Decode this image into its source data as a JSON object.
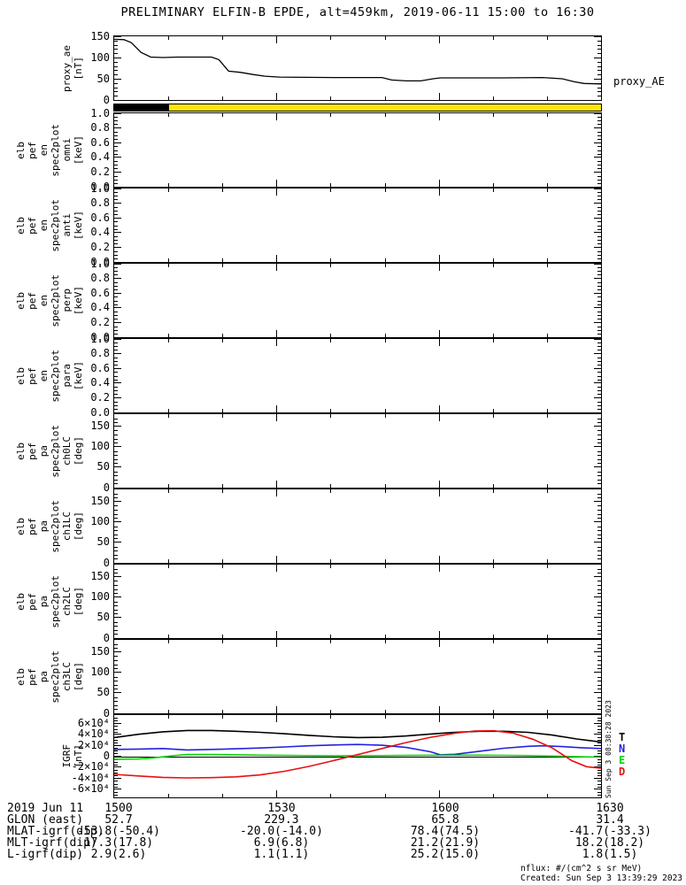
{
  "title": "PRELIMINARY ELFIN-B EPDE, alt=459km, 2019-06-11 15:00 to 16:30",
  "right_labels": {
    "proxy_ae": "proxy_AE",
    "legend": [
      {
        "label": "T",
        "color": "#000000"
      },
      {
        "label": "N",
        "color": "#2222E0"
      },
      {
        "label": "E",
        "color": "#00D800"
      },
      {
        "label": "D",
        "color": "#E81010"
      }
    ],
    "side_timestamp": "Sun Sep  3 08:38:28 2023"
  },
  "footer": {
    "nflux_label": "nflux: #/(cm^2 s sr MeV)",
    "created_label": "Created: Sun Sep  3 13:39:29 2023"
  },
  "table": {
    "date_label": "2019 Jun 11",
    "time_labels": [
      "1500",
      "1530",
      "1600",
      "1630"
    ],
    "rows": [
      {
        "label": "GLON (east)",
        "values": [
          "52.7",
          "229.3",
          "65.8",
          "31.4"
        ]
      },
      {
        "label": "MLAT-igrf(dip)",
        "values": [
          "-53.8(-50.4)",
          "-20.0(-14.0)",
          "78.4(74.5)",
          "-41.7(-33.3)"
        ]
      },
      {
        "label": "MLT-igrf(dip)",
        "values": [
          "17.3(17.8)",
          "6.9(6.8)",
          "21.2(21.9)",
          "18.2(18.2)"
        ]
      },
      {
        "label": "L-igrf(dip)",
        "values": [
          "2.9(2.6)",
          "1.1(1.1)",
          "25.2(15.0)",
          "1.8(1.5)"
        ]
      }
    ]
  },
  "xaxis": {
    "tick_labels": [
      "1500",
      "1530",
      "1600",
      "1630"
    ],
    "range": [
      "15:00",
      "16:30"
    ]
  },
  "chart_data": [
    {
      "id": "proxy_ae",
      "type": "line",
      "title_lines": [
        "proxy_ae",
        "[nT]"
      ],
      "ylim": [
        0,
        150
      ],
      "yminor": 10,
      "yticks": [
        {
          "v": 0,
          "l": "0"
        },
        {
          "v": 50,
          "l": "50"
        },
        {
          "v": 100,
          "l": "100"
        },
        {
          "v": 150,
          "l": "150"
        }
      ],
      "series": [
        {
          "name": "proxy_AE",
          "color": "#000000",
          "width": 1.3,
          "points": [
            [
              0,
              143
            ],
            [
              0.02,
              142
            ],
            [
              0.035,
              135
            ],
            [
              0.055,
              112
            ],
            [
              0.075,
              101
            ],
            [
              0.1,
              100
            ],
            [
              0.13,
              101
            ],
            [
              0.2,
              101
            ],
            [
              0.215,
              95
            ],
            [
              0.235,
              68
            ],
            [
              0.26,
              65
            ],
            [
              0.285,
              60
            ],
            [
              0.31,
              56
            ],
            [
              0.34,
              54
            ],
            [
              0.45,
              53
            ],
            [
              0.55,
              53
            ],
            [
              0.57,
              47
            ],
            [
              0.6,
              45
            ],
            [
              0.63,
              45
            ],
            [
              0.655,
              50
            ],
            [
              0.67,
              52
            ],
            [
              0.8,
              52
            ],
            [
              0.88,
              53
            ],
            [
              0.92,
              50
            ],
            [
              0.945,
              43
            ],
            [
              0.965,
              39
            ],
            [
              1,
              38
            ]
          ]
        }
      ]
    },
    {
      "id": "flag_bar",
      "type": "colorbar",
      "segments": [
        {
          "from": 0,
          "to": 0.1123,
          "color": "#000000"
        },
        {
          "from": 0.1123,
          "to": 1,
          "color": "#FDE900"
        }
      ]
    },
    {
      "id": "en_omni",
      "type": "spectrogram-empty",
      "title_lines": [
        "elb",
        "pef",
        "en",
        "spec2plot",
        "omni",
        "[keV]"
      ],
      "ylim": [
        0,
        1
      ],
      "yminor": 0.05,
      "yticks": [
        {
          "v": 0,
          "l": "0.0"
        },
        {
          "v": 0.2,
          "l": "0.2"
        },
        {
          "v": 0.4,
          "l": "0.4"
        },
        {
          "v": 0.6,
          "l": "0.6"
        },
        {
          "v": 0.8,
          "l": "0.8"
        },
        {
          "v": 1,
          "l": "1.0"
        }
      ]
    },
    {
      "id": "en_anti",
      "type": "spectrogram-empty",
      "title_lines": [
        "elb",
        "pef",
        "en",
        "spec2plot",
        "anti",
        "[keV]"
      ],
      "ylim": [
        0,
        1
      ],
      "yminor": 0.05,
      "yticks": [
        {
          "v": 0,
          "l": "0.0"
        },
        {
          "v": 0.2,
          "l": "0.2"
        },
        {
          "v": 0.4,
          "l": "0.4"
        },
        {
          "v": 0.6,
          "l": "0.6"
        },
        {
          "v": 0.8,
          "l": "0.8"
        },
        {
          "v": 1,
          "l": "1.0"
        }
      ]
    },
    {
      "id": "en_perp",
      "type": "spectrogram-empty",
      "title_lines": [
        "elb",
        "pef",
        "en",
        "spec2plot",
        "perp",
        "[keV]"
      ],
      "ylim": [
        0,
        1
      ],
      "yminor": 0.05,
      "yticks": [
        {
          "v": 0,
          "l": "0.0"
        },
        {
          "v": 0.2,
          "l": "0.2"
        },
        {
          "v": 0.4,
          "l": "0.4"
        },
        {
          "v": 0.6,
          "l": "0.6"
        },
        {
          "v": 0.8,
          "l": "0.8"
        },
        {
          "v": 1,
          "l": "1.0"
        }
      ]
    },
    {
      "id": "en_para",
      "type": "spectrogram-empty",
      "title_lines": [
        "elb",
        "pef",
        "en",
        "spec2plot",
        "para",
        "[keV]"
      ],
      "ylim": [
        0,
        1
      ],
      "yminor": 0.05,
      "yticks": [
        {
          "v": 0,
          "l": "0.0"
        },
        {
          "v": 0.2,
          "l": "0.2"
        },
        {
          "v": 0.4,
          "l": "0.4"
        },
        {
          "v": 0.6,
          "l": "0.6"
        },
        {
          "v": 0.8,
          "l": "0.8"
        },
        {
          "v": 1,
          "l": "1.0"
        }
      ]
    },
    {
      "id": "pa_ch0lc",
      "type": "spectrogram-empty",
      "title_lines": [
        "elb",
        "pef",
        "pa",
        "spec2plot",
        "ch0LC",
        "[deg]"
      ],
      "ylim": [
        0,
        180
      ],
      "yminor": 10,
      "yticks": [
        {
          "v": 0,
          "l": "0"
        },
        {
          "v": 50,
          "l": "50"
        },
        {
          "v": 100,
          "l": "100"
        },
        {
          "v": 150,
          "l": "150"
        }
      ]
    },
    {
      "id": "pa_ch1lc",
      "type": "spectrogram-empty",
      "title_lines": [
        "elb",
        "pef",
        "pa",
        "spec2plot",
        "ch1LC",
        "[deg]"
      ],
      "ylim": [
        0,
        180
      ],
      "yminor": 10,
      "yticks": [
        {
          "v": 0,
          "l": "0"
        },
        {
          "v": 50,
          "l": "50"
        },
        {
          "v": 100,
          "l": "100"
        },
        {
          "v": 150,
          "l": "150"
        }
      ]
    },
    {
      "id": "pa_ch2lc",
      "type": "spectrogram-empty",
      "title_lines": [
        "elb",
        "pef",
        "pa",
        "spec2plot",
        "ch2LC",
        "[deg]"
      ],
      "ylim": [
        0,
        180
      ],
      "yminor": 10,
      "yticks": [
        {
          "v": 0,
          "l": "0"
        },
        {
          "v": 50,
          "l": "50"
        },
        {
          "v": 100,
          "l": "100"
        },
        {
          "v": 150,
          "l": "150"
        }
      ]
    },
    {
      "id": "pa_ch3lc",
      "type": "spectrogram-empty",
      "title_lines": [
        "elb",
        "pef",
        "pa",
        "spec2plot",
        "ch3LC",
        "[deg]"
      ],
      "ylim": [
        0,
        180
      ],
      "yminor": 10,
      "yticks": [
        {
          "v": 0,
          "l": "0"
        },
        {
          "v": 50,
          "l": "50"
        },
        {
          "v": 100,
          "l": "100"
        },
        {
          "v": 150,
          "l": "150"
        }
      ]
    },
    {
      "id": "igrf",
      "type": "line",
      "zero_line": true,
      "title_lines": [
        "IGRF",
        "[nT]"
      ],
      "ylim": [
        -75000,
        75000
      ],
      "yminor": 5000,
      "yticks": [
        {
          "v": -60000,
          "l": "-6×10⁴"
        },
        {
          "v": -40000,
          "l": "-4×10⁴"
        },
        {
          "v": -20000,
          "l": "-2×10⁴"
        },
        {
          "v": 0,
          "l": "0"
        },
        {
          "v": 20000,
          "l": "2×10⁴"
        },
        {
          "v": 40000,
          "l": "4×10⁴"
        },
        {
          "v": 60000,
          "l": "6×10⁴"
        }
      ],
      "series": [
        {
          "name": "T",
          "color": "#000000",
          "width": 1.6,
          "points": [
            [
              0,
              34000
            ],
            [
              0.05,
              40000
            ],
            [
              0.1,
              44500
            ],
            [
              0.15,
              47000
            ],
            [
              0.2,
              47000
            ],
            [
              0.25,
              45500
            ],
            [
              0.3,
              43500
            ],
            [
              0.35,
              41000
            ],
            [
              0.4,
              38000
            ],
            [
              0.45,
              35500
            ],
            [
              0.5,
              34000
            ],
            [
              0.55,
              34500
            ],
            [
              0.6,
              37000
            ],
            [
              0.65,
              40500
            ],
            [
              0.7,
              43500
            ],
            [
              0.75,
              45500
            ],
            [
              0.8,
              45500
            ],
            [
              0.85,
              43500
            ],
            [
              0.9,
              38500
            ],
            [
              0.95,
              31500
            ],
            [
              1,
              26000
            ]
          ]
        },
        {
          "name": "N",
          "color": "#2222E0",
          "width": 1.6,
          "points": [
            [
              0,
              12500
            ],
            [
              0.05,
              13000
            ],
            [
              0.1,
              14000
            ],
            [
              0.12,
              13000
            ],
            [
              0.15,
              11500
            ],
            [
              0.2,
              12500
            ],
            [
              0.25,
              13500
            ],
            [
              0.3,
              15000
            ],
            [
              0.35,
              17000
            ],
            [
              0.4,
              19000
            ],
            [
              0.45,
              20500
            ],
            [
              0.5,
              21500
            ],
            [
              0.55,
              20000
            ],
            [
              0.6,
              16000
            ],
            [
              0.65,
              8000
            ],
            [
              0.67,
              2500
            ],
            [
              0.7,
              3500
            ],
            [
              0.75,
              9000
            ],
            [
              0.8,
              14500
            ],
            [
              0.85,
              18000
            ],
            [
              0.88,
              19000
            ],
            [
              0.92,
              17500
            ],
            [
              0.96,
              15500
            ],
            [
              1,
              14000
            ]
          ]
        },
        {
          "name": "E",
          "color": "#00D800",
          "width": 1.6,
          "points": [
            [
              0,
              -5500
            ],
            [
              0.05,
              -5000
            ],
            [
              0.08,
              -3000
            ],
            [
              0.12,
              1000
            ],
            [
              0.15,
              3000
            ],
            [
              0.2,
              3200
            ],
            [
              0.25,
              2600
            ],
            [
              0.3,
              2000
            ],
            [
              0.35,
              1500
            ],
            [
              0.4,
              1100
            ],
            [
              0.45,
              900
            ],
            [
              0.5,
              900
            ],
            [
              0.55,
              1100
            ],
            [
              0.6,
              1400
            ],
            [
              0.65,
              1700
            ],
            [
              0.7,
              1900
            ],
            [
              0.75,
              1900
            ],
            [
              0.8,
              1600
            ],
            [
              0.85,
              1100
            ],
            [
              0.9,
              300
            ],
            [
              0.95,
              -800
            ],
            [
              1,
              -1800
            ]
          ]
        },
        {
          "name": "D",
          "color": "#E81010",
          "width": 1.6,
          "points": [
            [
              0,
              -33000
            ],
            [
              0.05,
              -36000
            ],
            [
              0.1,
              -38500
            ],
            [
              0.15,
              -39500
            ],
            [
              0.2,
              -39000
            ],
            [
              0.25,
              -37500
            ],
            [
              0.3,
              -34000
            ],
            [
              0.35,
              -27500
            ],
            [
              0.4,
              -18500
            ],
            [
              0.45,
              -8000
            ],
            [
              0.5,
              3000
            ],
            [
              0.55,
              14000
            ],
            [
              0.6,
              25000
            ],
            [
              0.65,
              34500
            ],
            [
              0.7,
              42000
            ],
            [
              0.74,
              46000
            ],
            [
              0.78,
              46500
            ],
            [
              0.82,
              42000
            ],
            [
              0.86,
              31000
            ],
            [
              0.9,
              15000
            ],
            [
              0.94,
              -8000
            ],
            [
              0.97,
              -19000
            ],
            [
              1,
              -22000
            ]
          ]
        }
      ]
    }
  ]
}
